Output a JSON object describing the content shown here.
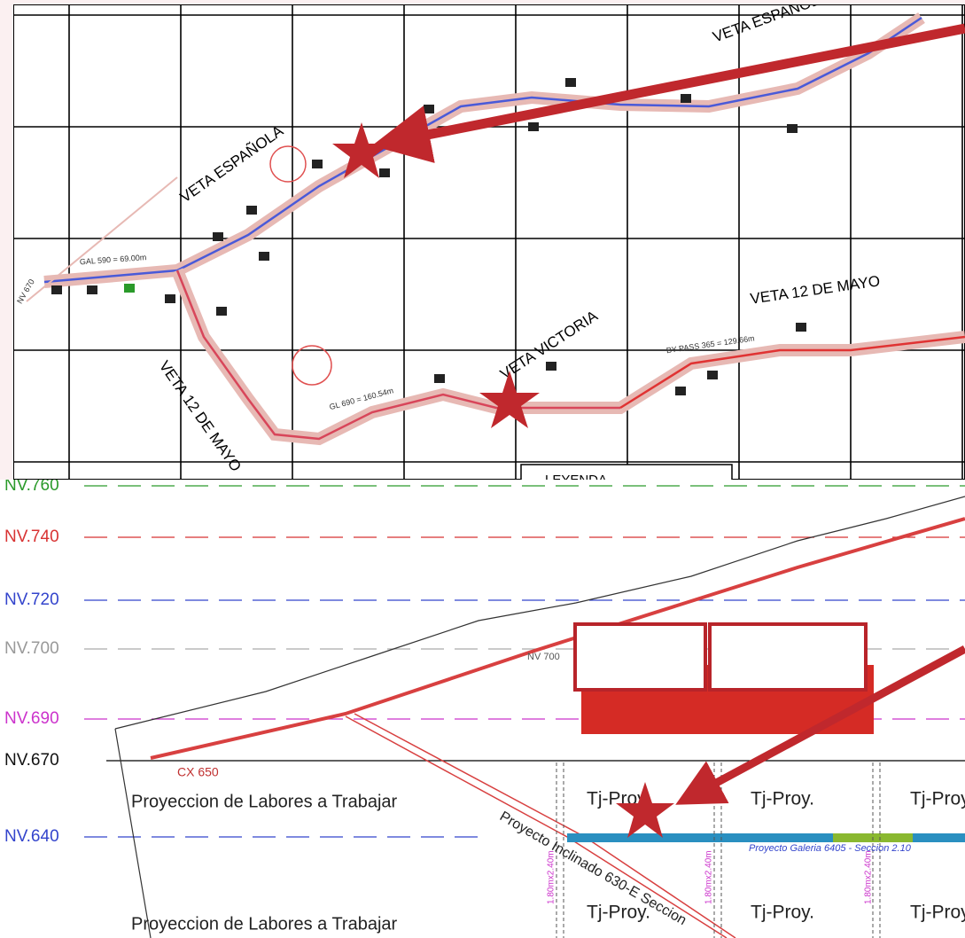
{
  "plan": {
    "labels": [
      "VETA ESPAÑOLA",
      "VETA ESPAÑOLA",
      "VETA 12 DE MAYO",
      "VETA VICTORIA",
      "VETA 12 DE MAYO",
      "LEYENDA",
      "GAL 590 = 69.00m",
      "GL 690 = 160.54m",
      "BY PASS 365 = 129.66m",
      "NV 670"
    ]
  },
  "section": {
    "levels": [
      "NV.760",
      "NV.740",
      "NV.720",
      "NV.700",
      "NV.690",
      "NV.670",
      "NV.640"
    ],
    "labels": [
      "NV 700",
      "CX 650",
      "Proyeccion  de Labores a Trabajar",
      "Proyeccion  de Labores a Trabajar",
      "Proyecto Inclinado 630-E Seccion",
      "Proyecto Galeria 6405 - Seccion 2.10",
      "Tj-Proy.",
      "Tj-Proy.",
      "Tj-Proy.",
      "Tj-Proy.",
      "Tj-Proy.",
      "Tj-Proy.",
      "1.80mx2.40m",
      "1.80mx2.40m",
      "1.80mx2.40m"
    ]
  }
}
